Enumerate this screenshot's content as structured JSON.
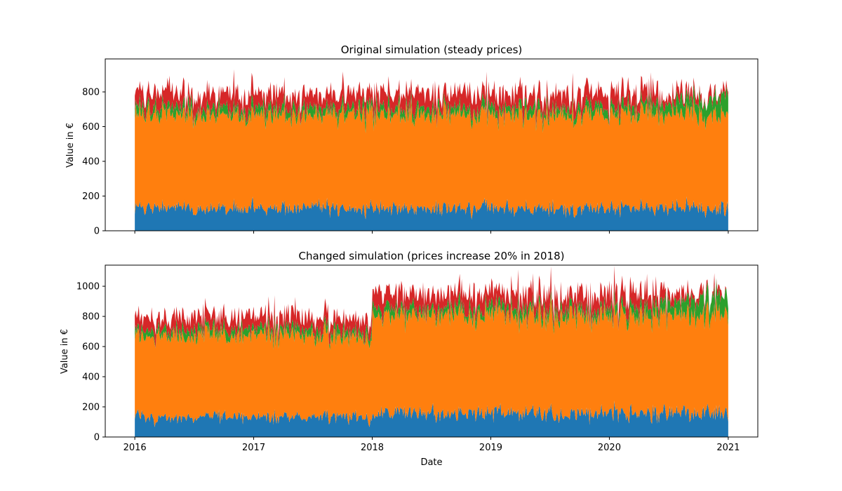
{
  "chart_data": [
    {
      "type": "area",
      "title": "Original simulation (steady prices)",
      "xlabel": "",
      "ylabel": "Value in €",
      "x_range": [
        "2016-01-01",
        "2021-01-01"
      ],
      "xlim": [
        "2015-10-02",
        "2021-04-02"
      ],
      "ylim": [
        0,
        990
      ],
      "yticks": [
        0,
        200,
        400,
        600,
        800
      ],
      "xticks": [],
      "stacked": true,
      "series": [
        {
          "color": "#1f77b4",
          "mean": 130,
          "noise": 25
        },
        {
          "color": "#ff7f0e",
          "mean": 540,
          "noise": 30
        },
        {
          "color": "#2ca02c",
          "mean": 40,
          "noise": 18,
          "late_mean": 110
        },
        {
          "color": "#d62728",
          "mean": 85,
          "noise": 25,
          "late_mean": 5
        }
      ]
    },
    {
      "type": "area",
      "title": "Changed simulation (prices increase 20% in 2018)",
      "xlabel": "Date",
      "ylabel": "Value in €",
      "x_range": [
        "2016-01-01",
        "2021-01-01"
      ],
      "xlim": [
        "2015-10-02",
        "2021-04-02"
      ],
      "ylim": [
        0,
        1140
      ],
      "yticks": [
        0,
        200,
        400,
        600,
        800,
        1000
      ],
      "xticks": [
        "2016",
        "2017",
        "2018",
        "2019",
        "2020",
        "2021"
      ],
      "stacked": true,
      "price_increase": {
        "date": "2018-01-01",
        "factor": 1.2
      },
      "series": [
        {
          "color": "#1f77b4",
          "mean": 130,
          "noise": 25
        },
        {
          "color": "#ff7f0e",
          "mean": 540,
          "noise": 30
        },
        {
          "color": "#2ca02c",
          "mean": 40,
          "noise": 18,
          "late_mean": 110
        },
        {
          "color": "#d62728",
          "mean": 85,
          "noise": 25,
          "late_mean": 5
        }
      ]
    }
  ]
}
